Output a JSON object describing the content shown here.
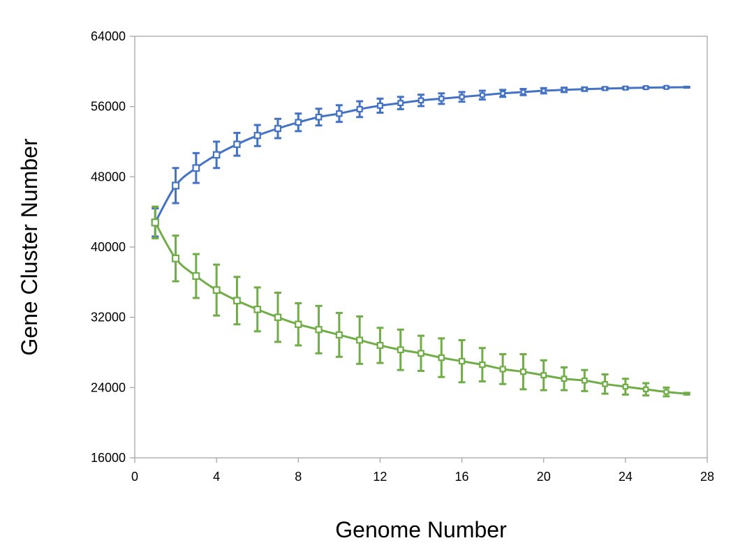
{
  "chart_data": {
    "type": "line",
    "title": "",
    "xlabel": "Genome Number",
    "ylabel": "Gene Cluster Number",
    "xlim": [
      0,
      28
    ],
    "ylim": [
      16000,
      64000
    ],
    "xticks": [
      0,
      4,
      8,
      12,
      16,
      20,
      24,
      28
    ],
    "yticks": [
      16000,
      24000,
      32000,
      40000,
      48000,
      56000,
      64000
    ],
    "grid": false,
    "legend": "none",
    "series": [
      {
        "color": "#4472C4",
        "marker": "square-open",
        "x": [
          1,
          2,
          3,
          4,
          5,
          6,
          7,
          8,
          9,
          10,
          11,
          12,
          13,
          14,
          15,
          16,
          17,
          18,
          19,
          20,
          21,
          22,
          23,
          24,
          25,
          26,
          27
        ],
        "values": [
          42800,
          47000,
          49000,
          50500,
          51700,
          52700,
          53500,
          54200,
          54800,
          55200,
          55700,
          56100,
          56400,
          56700,
          56900,
          57100,
          57300,
          57500,
          57650,
          57800,
          57900,
          57980,
          58050,
          58100,
          58150,
          58180,
          58200
        ],
        "error": [
          1600,
          2000,
          1700,
          1500,
          1300,
          1200,
          1100,
          1000,
          950,
          950,
          900,
          800,
          700,
          650,
          600,
          550,
          500,
          400,
          350,
          300,
          250,
          200,
          150,
          130,
          100,
          80,
          50
        ]
      },
      {
        "color": "#70AD47",
        "marker": "square-open",
        "x": [
          1,
          2,
          3,
          4,
          5,
          6,
          7,
          8,
          9,
          10,
          11,
          12,
          13,
          14,
          15,
          16,
          17,
          18,
          19,
          20,
          21,
          22,
          23,
          24,
          25,
          26,
          27
        ],
        "values": [
          42800,
          38700,
          36700,
          35100,
          33900,
          32900,
          32000,
          31200,
          30600,
          30000,
          29400,
          28800,
          28300,
          27900,
          27400,
          27000,
          26600,
          26100,
          25800,
          25400,
          25000,
          24800,
          24400,
          24100,
          23800,
          23500,
          23300
        ],
        "error": [
          1800,
          2600,
          2500,
          2900,
          2700,
          2500,
          2800,
          2400,
          2700,
          2500,
          2700,
          2000,
          2300,
          2000,
          2200,
          2400,
          1900,
          1700,
          2000,
          1700,
          1300,
          1200,
          1100,
          900,
          700,
          500,
          100
        ]
      }
    ]
  }
}
